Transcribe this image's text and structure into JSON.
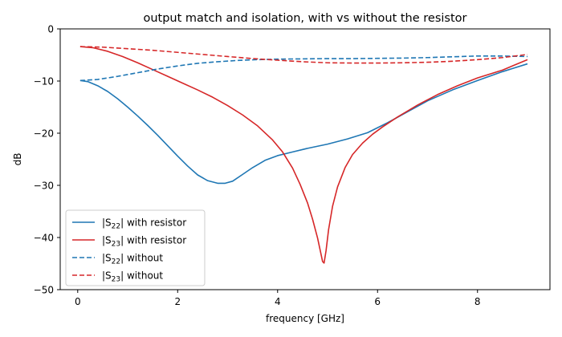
{
  "chart_data": {
    "type": "line",
    "title": "output match and isolation, with vs without the resistor",
    "xlabel": "frequency [GHz]",
    "ylabel": "dB",
    "xlim": [
      -0.35,
      9.45
    ],
    "ylim": [
      -50,
      0
    ],
    "xticks": [
      0,
      2,
      4,
      6,
      8
    ],
    "yticks": [
      0,
      -10,
      -20,
      -30,
      -40,
      -50
    ],
    "xtick_labels": [
      "0",
      "2",
      "4",
      "6",
      "8"
    ],
    "ytick_labels": [
      "0",
      "−10",
      "−20",
      "−30",
      "−40",
      "−50"
    ],
    "grid": false,
    "legend_position": "lower-left",
    "series": [
      {
        "name": "|S22| with resistor",
        "label_base": "|S",
        "label_sub": "22",
        "label_rest": "| with resistor",
        "color": "#1f77b4",
        "style": "solid",
        "x": [
          0.05,
          0.2,
          0.4,
          0.6,
          0.8,
          1.0,
          1.2,
          1.4,
          1.6,
          1.8,
          2.0,
          2.2,
          2.4,
          2.6,
          2.8,
          2.95,
          3.1,
          3.3,
          3.5,
          3.75,
          4.0,
          4.3,
          4.6,
          5.0,
          5.4,
          5.8,
          6.2,
          6.6,
          7.0,
          7.5,
          8.0,
          8.5,
          9.0
        ],
        "y": [
          -9.9,
          -10.1,
          -10.9,
          -12.0,
          -13.4,
          -15.0,
          -16.7,
          -18.5,
          -20.4,
          -22.4,
          -24.4,
          -26.3,
          -28.0,
          -29.1,
          -29.6,
          -29.6,
          -29.2,
          -27.9,
          -26.6,
          -25.2,
          -24.3,
          -23.6,
          -22.9,
          -22.1,
          -21.1,
          -19.9,
          -18.0,
          -15.9,
          -13.8,
          -11.7,
          -9.9,
          -8.2,
          -6.7
        ]
      },
      {
        "name": "|S23| with resistor",
        "label_base": "|S",
        "label_sub": "23",
        "label_rest": "| with resistor",
        "color": "#d62728",
        "style": "solid",
        "x": [
          0.05,
          0.3,
          0.6,
          0.9,
          1.2,
          1.5,
          1.8,
          2.1,
          2.4,
          2.7,
          3.0,
          3.3,
          3.6,
          3.9,
          4.1,
          4.3,
          4.45,
          4.6,
          4.7,
          4.8,
          4.86,
          4.9,
          4.93,
          4.97,
          5.02,
          5.1,
          5.2,
          5.35,
          5.5,
          5.7,
          5.9,
          6.1,
          6.4,
          6.8,
          7.2,
          7.6,
          8.0,
          8.5,
          9.0
        ],
        "y": [
          -3.4,
          -3.6,
          -4.3,
          -5.3,
          -6.5,
          -7.8,
          -9.1,
          -10.4,
          -11.7,
          -13.1,
          -14.7,
          -16.5,
          -18.6,
          -21.3,
          -23.6,
          -26.7,
          -29.8,
          -33.4,
          -36.5,
          -40.1,
          -42.8,
          -44.6,
          -44.9,
          -42.5,
          -38.5,
          -34.0,
          -30.3,
          -26.6,
          -24.1,
          -21.9,
          -20.2,
          -18.8,
          -16.9,
          -14.6,
          -12.6,
          -10.9,
          -9.4,
          -7.9,
          -5.9
        ]
      },
      {
        "name": "|S22| without",
        "label_base": "|S",
        "label_sub": "22",
        "label_rest": "| without",
        "color": "#1f77b4",
        "style": "dashed",
        "x": [
          0.05,
          0.4,
          0.8,
          1.2,
          1.6,
          2.0,
          2.4,
          2.8,
          3.2,
          3.6,
          4.0,
          4.5,
          5.0,
          5.5,
          6.0,
          6.5,
          7.0,
          7.5,
          8.0,
          8.5,
          9.0
        ],
        "y": [
          -9.9,
          -9.7,
          -9.1,
          -8.4,
          -7.7,
          -7.1,
          -6.6,
          -6.3,
          -6.05,
          -5.9,
          -5.8,
          -5.75,
          -5.7,
          -5.7,
          -5.65,
          -5.6,
          -5.5,
          -5.35,
          -5.2,
          -5.2,
          -5.3
        ]
      },
      {
        "name": "|S23| without",
        "label_base": "|S",
        "label_sub": "23",
        "label_rest": "| without",
        "color": "#d62728",
        "style": "dashed",
        "x": [
          0.05,
          0.5,
          1.0,
          1.5,
          2.0,
          2.5,
          3.0,
          3.5,
          4.0,
          4.5,
          5.0,
          5.5,
          6.0,
          6.5,
          7.0,
          7.5,
          8.0,
          8.5,
          9.0
        ],
        "y": [
          -3.4,
          -3.5,
          -3.8,
          -4.1,
          -4.5,
          -4.9,
          -5.3,
          -5.7,
          -6.0,
          -6.3,
          -6.5,
          -6.55,
          -6.55,
          -6.5,
          -6.4,
          -6.2,
          -5.9,
          -5.5,
          -4.9
        ]
      }
    ]
  }
}
